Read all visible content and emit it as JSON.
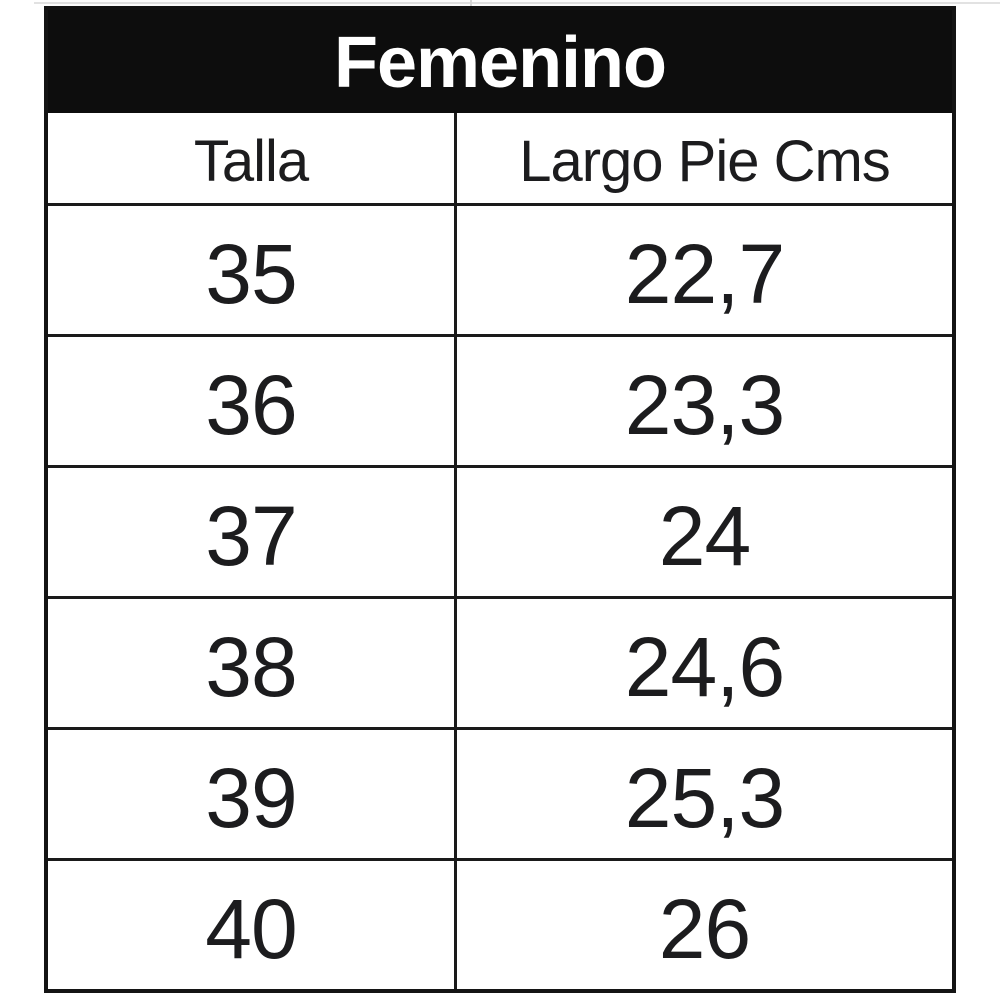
{
  "table": {
    "title": "Femenino",
    "columns": [
      "Talla",
      "Largo Pie Cms"
    ],
    "rows": [
      [
        "35",
        "22,7"
      ],
      [
        "36",
        "23,3"
      ],
      [
        "37",
        "24"
      ],
      [
        "38",
        "24,6"
      ],
      [
        "39",
        "25,3"
      ],
      [
        "40",
        "26"
      ]
    ]
  },
  "colors": {
    "header_bg": "#0d0d0d",
    "header_text": "#ffffff",
    "border": "#1a1a1a",
    "cell_text": "#1c1c1e",
    "artifact_line": "#e2e2e2"
  },
  "chart_data": {
    "type": "table",
    "title": "Femenino",
    "columns": [
      "Talla",
      "Largo Pie Cms"
    ],
    "rows": [
      [
        35,
        22.7
      ],
      [
        36,
        23.3
      ],
      [
        37,
        24
      ],
      [
        38,
        24.6
      ],
      [
        39,
        25.3
      ],
      [
        40,
        26
      ]
    ],
    "units": "cm",
    "decimal_separator": ","
  }
}
